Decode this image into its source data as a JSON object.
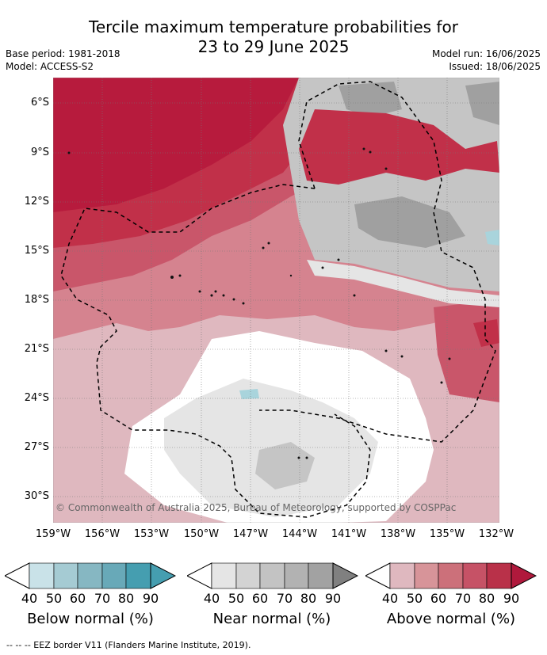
{
  "title_line1": "Tercile maximum temperature probabilities for",
  "title_line2": "23 to 29 June 2025",
  "base_period": "Base period: 1981-2018",
  "model": "Model: ACCESS-S2",
  "model_run": "Model run: 16/06/2025",
  "issued": "Issued: 18/06/2025",
  "lat_labels": [
    "6°S",
    "9°S",
    "12°S",
    "15°S",
    "18°S",
    "21°S",
    "24°S",
    "27°S",
    "30°S"
  ],
  "lon_labels": [
    "159°W",
    "156°W",
    "153°W",
    "150°W",
    "147°W",
    "144°W",
    "141°W",
    "138°W",
    "135°W",
    "132°W"
  ],
  "copyright": "© Commonwealth of Australia 2025, Bureau of Meteorology, supported by COSPPac",
  "colorbars": [
    {
      "title": "Below normal (%)",
      "ticks": [
        "40",
        "50",
        "60",
        "70",
        "80",
        "90"
      ],
      "colors": [
        "#c9e2e8",
        "#a5cbd3",
        "#86b7c2",
        "#68a9b8",
        "#459eb0"
      ]
    },
    {
      "title": "Near normal (%)",
      "ticks": [
        "40",
        "50",
        "60",
        "70",
        "80",
        "90"
      ],
      "colors": [
        "#e5e5e5",
        "#d3d3d3",
        "#c3c3c3",
        "#b2b2b2",
        "#a2a2a2"
      ]
    },
    {
      "title": "Above normal (%)",
      "ticks": [
        "40",
        "50",
        "60",
        "70",
        "80",
        "90"
      ],
      "colors": [
        "#dfb8bf",
        "#d79499",
        "#cc707a",
        "#c65266",
        "#b93149"
      ]
    }
  ],
  "legend_colors": {
    "above_darkest": "#b71b3d",
    "above_dark": "#c13049",
    "above_mid": "#c9566a",
    "above_light": "#d5838f",
    "above_lightest": "#dfb8bf",
    "near_light": "#e5e5e5",
    "near_mid": "#c5c5c5",
    "near_dark": "#a0a0a0",
    "below_light": "#a9d4dc"
  },
  "footer": "--  --  -- EEZ border V11 (Flanders Marine Institute, 2019)."
}
